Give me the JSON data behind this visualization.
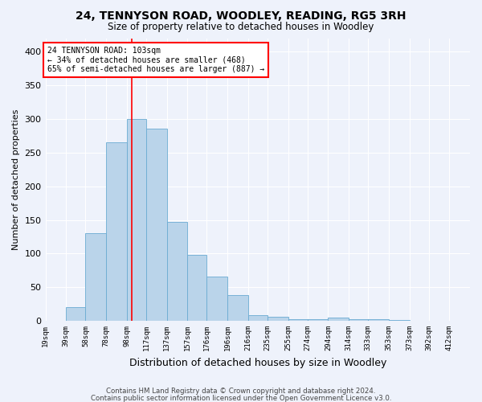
{
  "title1": "24, TENNYSON ROAD, WOODLEY, READING, RG5 3RH",
  "title2": "Size of property relative to detached houses in Woodley",
  "xlabel": "Distribution of detached houses by size in Woodley",
  "ylabel": "Number of detached properties",
  "footnote1": "Contains HM Land Registry data © Crown copyright and database right 2024.",
  "footnote2": "Contains public sector information licensed under the Open Government Licence v3.0.",
  "bins": [
    "19sqm",
    "39sqm",
    "58sqm",
    "78sqm",
    "98sqm",
    "117sqm",
    "137sqm",
    "157sqm",
    "176sqm",
    "196sqm",
    "216sqm",
    "235sqm",
    "255sqm",
    "274sqm",
    "294sqm",
    "314sqm",
    "333sqm",
    "353sqm",
    "373sqm",
    "392sqm",
    "412sqm"
  ],
  "left_edges": [
    19,
    39,
    58,
    78,
    98,
    117,
    137,
    157,
    176,
    196,
    216,
    235,
    255,
    274,
    294,
    314,
    333,
    353,
    373,
    392,
    412
  ],
  "values": [
    0,
    20,
    130,
    265,
    300,
    285,
    147,
    98,
    66,
    38,
    9,
    6,
    3,
    2,
    5,
    2,
    2,
    1,
    0,
    0,
    0
  ],
  "bar_color": "#bad4ea",
  "bar_edge_color": "#6aabd2",
  "vline_x": 103,
  "annotation_text": "24 TENNYSON ROAD: 103sqm\n← 34% of detached houses are smaller (468)\n65% of semi-detached houses are larger (887) →",
  "annotation_box_color": "white",
  "annotation_box_edge": "red",
  "vline_color": "red",
  "ylim": [
    0,
    420
  ],
  "yticks": [
    0,
    50,
    100,
    150,
    200,
    250,
    300,
    350,
    400
  ],
  "background_color": "#eef2fb",
  "grid_color": "#ffffff",
  "bin_width": 19
}
